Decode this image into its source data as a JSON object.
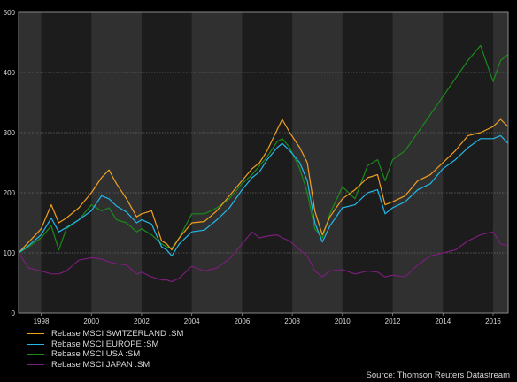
{
  "chart_data": {
    "type": "line",
    "x_ticks": [
      "1998",
      "2000",
      "2002",
      "2004",
      "2006",
      "2008",
      "2010",
      "2012",
      "2014",
      "2016"
    ],
    "y_ticks": [
      "0",
      "100",
      "200",
      "300",
      "400",
      "500"
    ],
    "xlim": [
      1997.1,
      2016.6
    ],
    "ylim": [
      0,
      500
    ],
    "grid": true,
    "legend_position": "bottom-left",
    "series": [
      {
        "name": "Rebase MSCI SWITZERLAND :SM",
        "color": "#f0a020",
        "points": [
          [
            1997.1,
            100
          ],
          [
            1997.5,
            118
          ],
          [
            1998.0,
            140
          ],
          [
            1998.4,
            180
          ],
          [
            1998.7,
            150
          ],
          [
            1999.0,
            158
          ],
          [
            1999.5,
            175
          ],
          [
            2000.0,
            200
          ],
          [
            2000.4,
            225
          ],
          [
            2000.7,
            238
          ],
          [
            2001.0,
            215
          ],
          [
            2001.4,
            190
          ],
          [
            2001.8,
            160
          ],
          [
            2002.0,
            165
          ],
          [
            2002.4,
            170
          ],
          [
            2002.8,
            120
          ],
          [
            2003.0,
            115
          ],
          [
            2003.2,
            105
          ],
          [
            2003.5,
            125
          ],
          [
            2004.0,
            150
          ],
          [
            2004.5,
            152
          ],
          [
            2005.0,
            170
          ],
          [
            2005.5,
            195
          ],
          [
            2006.0,
            220
          ],
          [
            2006.4,
            240
          ],
          [
            2006.7,
            250
          ],
          [
            2007.0,
            270
          ],
          [
            2007.4,
            305
          ],
          [
            2007.6,
            322
          ],
          [
            2007.9,
            300
          ],
          [
            2008.3,
            275
          ],
          [
            2008.6,
            250
          ],
          [
            2008.9,
            170
          ],
          [
            2009.2,
            130
          ],
          [
            2009.5,
            160
          ],
          [
            2010.0,
            190
          ],
          [
            2010.5,
            205
          ],
          [
            2011.0,
            225
          ],
          [
            2011.4,
            230
          ],
          [
            2011.7,
            180
          ],
          [
            2012.0,
            185
          ],
          [
            2012.5,
            195
          ],
          [
            2013.0,
            220
          ],
          [
            2013.5,
            230
          ],
          [
            2014.0,
            250
          ],
          [
            2014.5,
            270
          ],
          [
            2015.0,
            295
          ],
          [
            2015.5,
            300
          ],
          [
            2016.0,
            310
          ],
          [
            2016.3,
            322
          ],
          [
            2016.6,
            310
          ]
        ]
      },
      {
        "name": "Rebase MSCI EUROPE :SM",
        "color": "#22b8e8",
        "points": [
          [
            1997.1,
            100
          ],
          [
            1997.5,
            112
          ],
          [
            1998.0,
            130
          ],
          [
            1998.4,
            158
          ],
          [
            1998.7,
            135
          ],
          [
            1999.0,
            142
          ],
          [
            1999.5,
            155
          ],
          [
            2000.0,
            170
          ],
          [
            2000.4,
            195
          ],
          [
            2000.7,
            190
          ],
          [
            2001.0,
            178
          ],
          [
            2001.4,
            168
          ],
          [
            2001.8,
            150
          ],
          [
            2002.0,
            155
          ],
          [
            2002.4,
            148
          ],
          [
            2002.8,
            110
          ],
          [
            2003.0,
            105
          ],
          [
            2003.2,
            95
          ],
          [
            2003.5,
            115
          ],
          [
            2004.0,
            135
          ],
          [
            2004.5,
            138
          ],
          [
            2005.0,
            155
          ],
          [
            2005.5,
            175
          ],
          [
            2006.0,
            205
          ],
          [
            2006.4,
            225
          ],
          [
            2006.7,
            235
          ],
          [
            2007.0,
            255
          ],
          [
            2007.4,
            275
          ],
          [
            2007.6,
            282
          ],
          [
            2007.9,
            270
          ],
          [
            2008.3,
            250
          ],
          [
            2008.6,
            220
          ],
          [
            2008.9,
            150
          ],
          [
            2009.2,
            118
          ],
          [
            2009.5,
            145
          ],
          [
            2010.0,
            175
          ],
          [
            2010.5,
            180
          ],
          [
            2011.0,
            200
          ],
          [
            2011.4,
            205
          ],
          [
            2011.7,
            165
          ],
          [
            2012.0,
            175
          ],
          [
            2012.5,
            185
          ],
          [
            2013.0,
            205
          ],
          [
            2013.5,
            215
          ],
          [
            2014.0,
            240
          ],
          [
            2014.5,
            255
          ],
          [
            2015.0,
            275
          ],
          [
            2015.5,
            290
          ],
          [
            2016.0,
            290
          ],
          [
            2016.3,
            295
          ],
          [
            2016.6,
            282
          ]
        ]
      },
      {
        "name": "Rebase MSCI USA :SM",
        "color": "#1a8a1a",
        "points": [
          [
            1997.1,
            100
          ],
          [
            1997.5,
            110
          ],
          [
            1998.0,
            125
          ],
          [
            1998.4,
            145
          ],
          [
            1998.7,
            105
          ],
          [
            1999.0,
            140
          ],
          [
            1999.5,
            155
          ],
          [
            2000.0,
            180
          ],
          [
            2000.4,
            170
          ],
          [
            2000.7,
            175
          ],
          [
            2001.0,
            155
          ],
          [
            2001.4,
            150
          ],
          [
            2001.8,
            135
          ],
          [
            2002.0,
            140
          ],
          [
            2002.4,
            130
          ],
          [
            2002.8,
            115
          ],
          [
            2003.0,
            110
          ],
          [
            2003.2,
            108
          ],
          [
            2003.5,
            125
          ],
          [
            2004.0,
            165
          ],
          [
            2004.5,
            165
          ],
          [
            2005.0,
            175
          ],
          [
            2005.5,
            190
          ],
          [
            2006.0,
            215
          ],
          [
            2006.4,
            230
          ],
          [
            2006.7,
            245
          ],
          [
            2007.0,
            260
          ],
          [
            2007.4,
            285
          ],
          [
            2007.6,
            290
          ],
          [
            2007.9,
            275
          ],
          [
            2008.3,
            240
          ],
          [
            2008.6,
            200
          ],
          [
            2008.9,
            140
          ],
          [
            2009.2,
            125
          ],
          [
            2009.5,
            165
          ],
          [
            2010.0,
            210
          ],
          [
            2010.5,
            190
          ],
          [
            2011.0,
            245
          ],
          [
            2011.4,
            255
          ],
          [
            2011.7,
            220
          ],
          [
            2012.0,
            255
          ],
          [
            2012.5,
            270
          ],
          [
            2013.0,
            300
          ],
          [
            2013.5,
            330
          ],
          [
            2014.0,
            360
          ],
          [
            2014.5,
            390
          ],
          [
            2015.0,
            420
          ],
          [
            2015.5,
            445
          ],
          [
            2016.0,
            385
          ],
          [
            2016.3,
            420
          ],
          [
            2016.6,
            430
          ]
        ]
      },
      {
        "name": "Rebase MSCI JAPAN :SM",
        "color": "#7a1e7a",
        "points": [
          [
            1997.1,
            100
          ],
          [
            1997.5,
            75
          ],
          [
            1998.0,
            70
          ],
          [
            1998.4,
            65
          ],
          [
            1998.7,
            65
          ],
          [
            1999.0,
            70
          ],
          [
            1999.5,
            88
          ],
          [
            2000.0,
            92
          ],
          [
            2000.4,
            90
          ],
          [
            2000.7,
            85
          ],
          [
            2001.0,
            82
          ],
          [
            2001.4,
            80
          ],
          [
            2001.8,
            65
          ],
          [
            2002.0,
            68
          ],
          [
            2002.4,
            60
          ],
          [
            2002.8,
            55
          ],
          [
            2003.0,
            55
          ],
          [
            2003.2,
            52
          ],
          [
            2003.5,
            58
          ],
          [
            2004.0,
            78
          ],
          [
            2004.5,
            70
          ],
          [
            2005.0,
            75
          ],
          [
            2005.5,
            90
          ],
          [
            2006.0,
            115
          ],
          [
            2006.4,
            135
          ],
          [
            2006.7,
            125
          ],
          [
            2007.0,
            128
          ],
          [
            2007.4,
            130
          ],
          [
            2007.6,
            125
          ],
          [
            2007.9,
            120
          ],
          [
            2008.3,
            105
          ],
          [
            2008.6,
            95
          ],
          [
            2008.9,
            70
          ],
          [
            2009.2,
            60
          ],
          [
            2009.5,
            70
          ],
          [
            2010.0,
            72
          ],
          [
            2010.5,
            65
          ],
          [
            2011.0,
            70
          ],
          [
            2011.4,
            68
          ],
          [
            2011.7,
            60
          ],
          [
            2012.0,
            63
          ],
          [
            2012.5,
            60
          ],
          [
            2013.0,
            80
          ],
          [
            2013.5,
            95
          ],
          [
            2014.0,
            100
          ],
          [
            2014.5,
            105
          ],
          [
            2015.0,
            120
          ],
          [
            2015.5,
            130
          ],
          [
            2016.0,
            135
          ],
          [
            2016.3,
            115
          ],
          [
            2016.6,
            112
          ]
        ]
      }
    ]
  },
  "source": "Source: Thomson Reuters Datastream"
}
